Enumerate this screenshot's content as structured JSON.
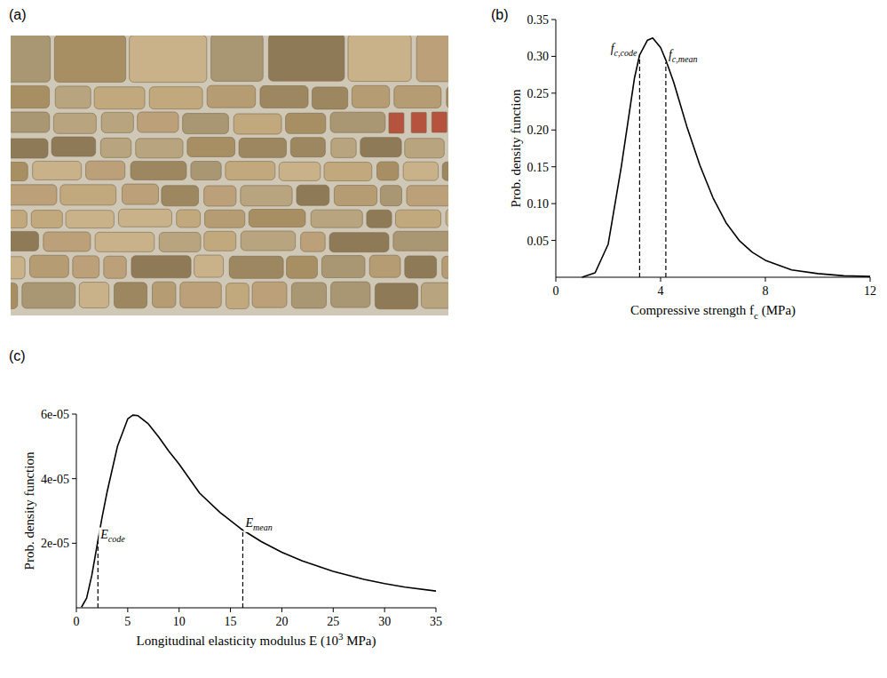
{
  "photo": {
    "label": "(a)"
  },
  "chart_data": [
    {
      "type": "line",
      "label": "(b)",
      "xlabel": [
        {
          "text": "Compressive strength f"
        },
        {
          "text": "c",
          "sub": true
        },
        {
          "text": " (MPa)"
        }
      ],
      "ylabel": [
        {
          "text": "Prob. density function"
        }
      ],
      "xlim": [
        0,
        12
      ],
      "xticks": [
        0,
        4,
        8,
        12
      ],
      "ylim": [
        0,
        0.35
      ],
      "yticks": [
        0.05,
        {
          "value": 0.1,
          "label": "0.10"
        },
        0.15,
        {
          "value": 0.2,
          "label": "0.20"
        },
        0.25,
        {
          "value": 0.3,
          "label": "0.30"
        },
        0.35
      ],
      "x": [
        1.0,
        1.5,
        2.0,
        2.5,
        3.0,
        3.2,
        3.5,
        3.7,
        4.0,
        4.2,
        4.5,
        5.0,
        5.5,
        6.0,
        6.5,
        7.0,
        7.5,
        8.0,
        9.0,
        10.0,
        11.0,
        12.0
      ],
      "series": [
        {
          "color": "#000000",
          "line_style": "solid",
          "values": [
            0.0,
            0.006,
            0.045,
            0.15,
            0.27,
            0.302,
            0.322,
            0.325,
            0.312,
            0.295,
            0.265,
            0.205,
            0.152,
            0.108,
            0.074,
            0.05,
            0.034,
            0.023,
            0.01,
            0.005,
            0.002,
            0.001
          ]
        }
      ],
      "annotations": [
        {
          "x": 3.2,
          "y": 0.3,
          "label": [
            {
              "text": "f"
            },
            {
              "text": "c,code",
              "sub": true
            }
          ]
        },
        {
          "x": 4.2,
          "y": 0.292,
          "label": [
            {
              "text": "f"
            },
            {
              "text": "c,mean",
              "sub": true
            }
          ]
        }
      ],
      "grid": false
    },
    {
      "type": "line",
      "label": "(c)",
      "xlabel": [
        {
          "text": "Longitudinal elasticity modulus E (10"
        },
        {
          "text": "3",
          "sup": true
        },
        {
          "text": " MPa)"
        }
      ],
      "ylabel": [
        {
          "text": "Prob. density function"
        }
      ],
      "xlim": [
        0,
        35
      ],
      "xticks": [
        0,
        5,
        10,
        15,
        20,
        25,
        30,
        35
      ],
      "ylim": [
        0,
        6e-05
      ],
      "yticks": [
        {
          "value": 2e-05,
          "label": "2e-05"
        },
        {
          "value": 4e-05,
          "label": "4e-05"
        },
        {
          "value": 6e-05,
          "label": "6e-05"
        }
      ],
      "x": [
        0.5,
        1,
        1.5,
        2,
        2.5,
        3,
        4,
        5,
        5.5,
        6,
        7,
        8,
        9,
        10,
        12,
        14,
        16,
        18,
        20,
        22,
        25,
        28,
        30,
        32,
        35
      ],
      "series": [
        {
          "color": "#000000",
          "line_style": "solid",
          "values": [
            2e-07,
            3e-06,
            1e-05,
            1.9e-05,
            2.8e-05,
            3.6e-05,
            5e-05,
            5.85e-05,
            5.97e-05,
            5.95e-05,
            5.7e-05,
            5.3e-05,
            4.85e-05,
            4.45e-05,
            3.55e-05,
            2.95e-05,
            2.45e-05,
            2.05e-05,
            1.72e-05,
            1.45e-05,
            1.13e-05,
            8.8e-06,
            7.5e-06,
            6.4e-06,
            5.2e-06
          ]
        }
      ],
      "annotations": [
        {
          "x": 2.1,
          "y": 2.05e-05,
          "label": [
            {
              "text": "E"
            },
            {
              "text": "code",
              "sub": true
            }
          ]
        },
        {
          "x": 16.2,
          "y": 2.4e-05,
          "label": [
            {
              "text": "E"
            },
            {
              "text": "mean",
              "sub": true
            }
          ]
        }
      ],
      "grid": false
    }
  ]
}
